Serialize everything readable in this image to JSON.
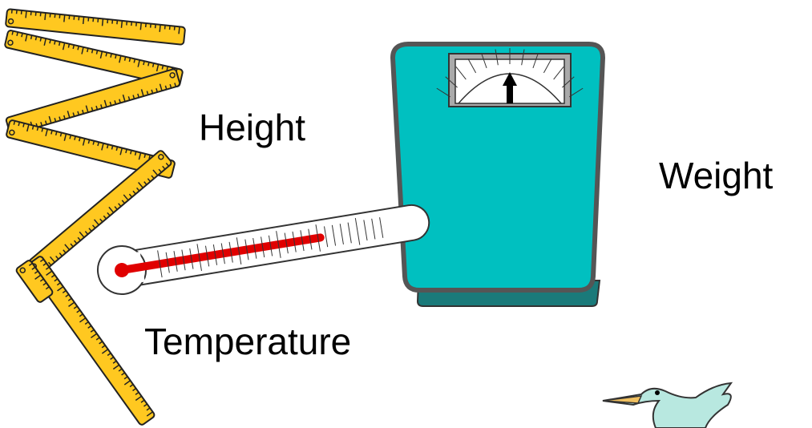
{
  "labels": {
    "height": "Height",
    "weight": "Weight",
    "temperature": "Temperature"
  }
}
